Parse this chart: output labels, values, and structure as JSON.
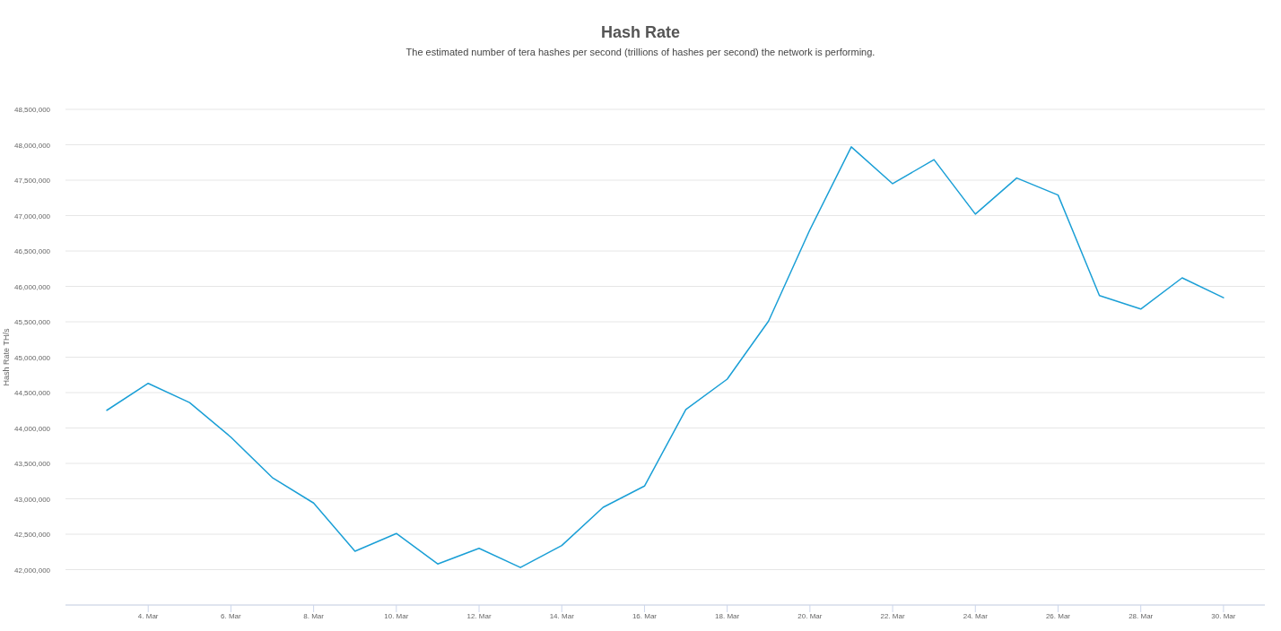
{
  "chart_data": {
    "type": "line",
    "title": "Hash Rate",
    "subtitle": "The estimated number of tera hashes per second (trillions of hashes per second) the network is performing.",
    "ylabel": "Hash Rate TH/s",
    "x": [
      "--03-03",
      "--03-04",
      "--03-05",
      "--03-06",
      "--03-07",
      "--03-08",
      "--03-09",
      "--03-10",
      "--03-11",
      "--03-12",
      "--03-13",
      "--03-14",
      "--03-15",
      "--03-16",
      "--03-17",
      "--03-18",
      "--03-19",
      "--03-20",
      "--03-21",
      "--03-22",
      "--03-23",
      "--03-24",
      "--03-25",
      "--03-26",
      "--03-27",
      "--03-28",
      "--03-29",
      "--03-30"
    ],
    "series": [
      {
        "color": "#1a9fd6",
        "values": [
          44250000,
          44630000,
          44360000,
          43870000,
          43300000,
          42940000,
          42260000,
          42510000,
          42080000,
          42300000,
          42030000,
          42340000,
          42880000,
          43180000,
          44260000,
          44690000,
          45510000,
          46800000,
          47970000,
          47450000,
          47790000,
          47020000,
          47530000,
          47290000,
          45870000,
          45680000,
          46120000,
          45840000
        ]
      }
    ],
    "xlim": [
      "--03-02",
      "--03-31"
    ],
    "xticks": [
      {
        "value": "--03-04",
        "label": "4. Mar"
      },
      {
        "value": "--03-06",
        "label": "6. Mar"
      },
      {
        "value": "--03-08",
        "label": "8. Mar"
      },
      {
        "value": "--03-10",
        "label": "10. Mar"
      },
      {
        "value": "--03-12",
        "label": "12. Mar"
      },
      {
        "value": "--03-14",
        "label": "14. Mar"
      },
      {
        "value": "--03-16",
        "label": "16. Mar"
      },
      {
        "value": "--03-18",
        "label": "18. Mar"
      },
      {
        "value": "--03-20",
        "label": "20. Mar"
      },
      {
        "value": "--03-22",
        "label": "22. Mar"
      },
      {
        "value": "--03-24",
        "label": "24. Mar"
      },
      {
        "value": "--03-26",
        "label": "26. Mar"
      },
      {
        "value": "--03-28",
        "label": "28. Mar"
      },
      {
        "value": "--03-30",
        "label": "30. Mar"
      }
    ],
    "ylim": [
      41500000,
      48500000
    ],
    "yticks": [
      {
        "value": 42000000,
        "label": "42,000,000"
      },
      {
        "value": 42500000,
        "label": "42,500,000"
      },
      {
        "value": 43000000,
        "label": "43,000,000"
      },
      {
        "value": 43500000,
        "label": "43,500,000"
      },
      {
        "value": 44000000,
        "label": "44,000,000"
      },
      {
        "value": 44500000,
        "label": "44,500,000"
      },
      {
        "value": 45000000,
        "label": "45,000,000"
      },
      {
        "value": 45500000,
        "label": "45,500,000"
      },
      {
        "value": 46000000,
        "label": "46,000,000"
      },
      {
        "value": 46500000,
        "label": "46,500,000"
      },
      {
        "value": 47000000,
        "label": "47,000,000"
      },
      {
        "value": 47500000,
        "label": "47,500,000"
      },
      {
        "value": 48000000,
        "label": "48,000,000"
      },
      {
        "value": 48500000,
        "label": "48,500,000"
      }
    ],
    "grid": "y"
  }
}
